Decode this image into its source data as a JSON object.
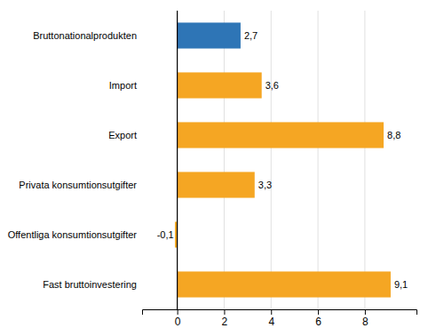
{
  "chart_data": {
    "type": "bar",
    "orientation": "horizontal",
    "categories": [
      "Fast bruttoinvestering",
      "Offentliga konsumtionsutgifter",
      "Privata konsumtionsutgifter",
      "Export",
      "Import",
      "Bruttonationalprodukten"
    ],
    "values": [
      9.1,
      -0.1,
      3.3,
      8.8,
      3.6,
      2.7
    ],
    "value_labels": [
      "9,1",
      "-0,1",
      "3,3",
      "8,8",
      "3,6",
      "2,7"
    ],
    "data_labels": true,
    "colors": [
      "#f5a623",
      "#f5a623",
      "#f5a623",
      "#f5a623",
      "#f5a623",
      "#2e75b6"
    ],
    "xlim": [
      -1.5,
      10.2
    ],
    "xticks": [
      0,
      2,
      4,
      6,
      8
    ],
    "grid": true
  }
}
